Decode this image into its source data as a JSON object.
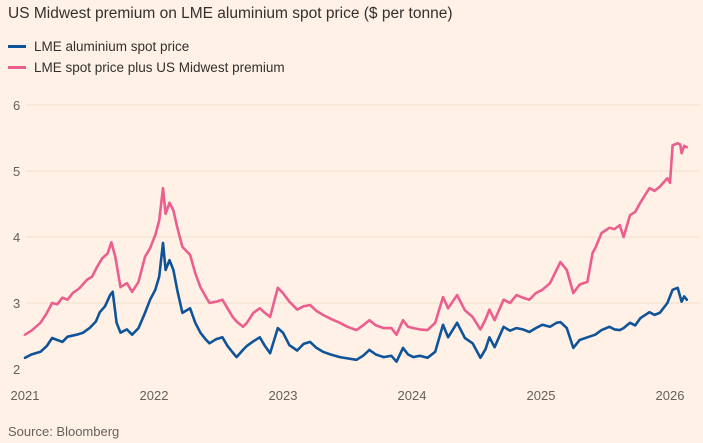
{
  "chart_data": {
    "type": "line",
    "title": "US Midwest premium on LME aluminium spot price ($ per tonne)",
    "xlabel": "",
    "ylabel": "",
    "source": "Source: Bloomberg",
    "grid": true,
    "legend_position": "top-left",
    "xlim": [
      2021,
      2026.15
    ],
    "ylim": [
      2,
      6
    ],
    "x_ticks": [
      2021,
      2022,
      2023,
      2024,
      2025,
      2026
    ],
    "x_tick_labels": [
      "2021",
      "2022",
      "2023",
      "2024",
      "2025",
      "2026"
    ],
    "y_ticks": [
      2,
      3,
      4,
      5,
      6
    ],
    "y_tick_labels": [
      "2",
      "3",
      "4",
      "5",
      "6"
    ],
    "series": [
      {
        "name": "LME aluminium spot price",
        "color": "#0F5499",
        "points": [
          [
            2021.0,
            2.17
          ],
          [
            2021.05,
            2.22
          ],
          [
            2021.12,
            2.26
          ],
          [
            2021.17,
            2.35
          ],
          [
            2021.21,
            2.47
          ],
          [
            2021.25,
            2.44
          ],
          [
            2021.29,
            2.41
          ],
          [
            2021.33,
            2.49
          ],
          [
            2021.4,
            2.52
          ],
          [
            2021.45,
            2.55
          ],
          [
            2021.5,
            2.62
          ],
          [
            2021.55,
            2.72
          ],
          [
            2021.58,
            2.86
          ],
          [
            2021.62,
            2.95
          ],
          [
            2021.66,
            3.12
          ],
          [
            2021.68,
            3.17
          ],
          [
            2021.71,
            2.7
          ],
          [
            2021.74,
            2.55
          ],
          [
            2021.79,
            2.6
          ],
          [
            2021.83,
            2.52
          ],
          [
            2021.88,
            2.62
          ],
          [
            2021.93,
            2.85
          ],
          [
            2021.97,
            3.05
          ],
          [
            2022.01,
            3.2
          ],
          [
            2022.04,
            3.4
          ],
          [
            2022.07,
            3.91
          ],
          [
            2022.09,
            3.5
          ],
          [
            2022.12,
            3.65
          ],
          [
            2022.15,
            3.5
          ],
          [
            2022.18,
            3.2
          ],
          [
            2022.22,
            2.85
          ],
          [
            2022.28,
            2.92
          ],
          [
            2022.32,
            2.7
          ],
          [
            2022.36,
            2.55
          ],
          [
            2022.4,
            2.45
          ],
          [
            2022.43,
            2.39
          ],
          [
            2022.48,
            2.45
          ],
          [
            2022.53,
            2.48
          ],
          [
            2022.57,
            2.35
          ],
          [
            2022.61,
            2.25
          ],
          [
            2022.64,
            2.18
          ],
          [
            2022.69,
            2.29
          ],
          [
            2022.72,
            2.35
          ],
          [
            2022.77,
            2.42
          ],
          [
            2022.82,
            2.48
          ],
          [
            2022.86,
            2.35
          ],
          [
            2022.9,
            2.24
          ],
          [
            2022.96,
            2.62
          ],
          [
            2023.0,
            2.55
          ],
          [
            2023.05,
            2.36
          ],
          [
            2023.11,
            2.28
          ],
          [
            2023.16,
            2.38
          ],
          [
            2023.21,
            2.41
          ],
          [
            2023.26,
            2.32
          ],
          [
            2023.31,
            2.26
          ],
          [
            2023.37,
            2.22
          ],
          [
            2023.44,
            2.18
          ],
          [
            2023.5,
            2.16
          ],
          [
            2023.57,
            2.14
          ],
          [
            2023.62,
            2.2
          ],
          [
            2023.67,
            2.29
          ],
          [
            2023.72,
            2.22
          ],
          [
            2023.78,
            2.18
          ],
          [
            2023.84,
            2.2
          ],
          [
            2023.88,
            2.11
          ],
          [
            2023.93,
            2.32
          ],
          [
            2023.97,
            2.22
          ],
          [
            2024.01,
            2.18
          ],
          [
            2024.06,
            2.2
          ],
          [
            2024.12,
            2.17
          ],
          [
            2024.18,
            2.26
          ],
          [
            2024.24,
            2.67
          ],
          [
            2024.28,
            2.48
          ],
          [
            2024.35,
            2.7
          ],
          [
            2024.41,
            2.47
          ],
          [
            2024.47,
            2.39
          ],
          [
            2024.53,
            2.17
          ],
          [
            2024.57,
            2.3
          ],
          [
            2024.6,
            2.48
          ],
          [
            2024.64,
            2.33
          ],
          [
            2024.71,
            2.64
          ],
          [
            2024.76,
            2.58
          ],
          [
            2024.81,
            2.62
          ],
          [
            2024.86,
            2.6
          ],
          [
            2024.91,
            2.56
          ],
          [
            2024.96,
            2.62
          ],
          [
            2025.01,
            2.67
          ],
          [
            2025.07,
            2.64
          ],
          [
            2025.12,
            2.7
          ],
          [
            2025.15,
            2.71
          ],
          [
            2025.2,
            2.62
          ],
          [
            2025.25,
            2.32
          ],
          [
            2025.3,
            2.44
          ],
          [
            2025.36,
            2.48
          ],
          [
            2025.42,
            2.52
          ],
          [
            2025.47,
            2.59
          ],
          [
            2025.53,
            2.64
          ],
          [
            2025.57,
            2.6
          ],
          [
            2025.61,
            2.59
          ],
          [
            2025.64,
            2.62
          ],
          [
            2025.69,
            2.7
          ],
          [
            2025.73,
            2.66
          ],
          [
            2025.77,
            2.77
          ],
          [
            2025.84,
            2.86
          ],
          [
            2025.88,
            2.82
          ],
          [
            2025.92,
            2.85
          ],
          [
            2025.98,
            3.0
          ],
          [
            2026.02,
            3.2
          ],
          [
            2026.06,
            3.23
          ],
          [
            2026.09,
            3.02
          ],
          [
            2026.11,
            3.1
          ],
          [
            2026.13,
            3.05
          ]
        ]
      },
      {
        "name": "LME spot price plus US Midwest premium",
        "color": "#EB5E8D",
        "points": [
          [
            2021.0,
            2.52
          ],
          [
            2021.05,
            2.58
          ],
          [
            2021.12,
            2.7
          ],
          [
            2021.17,
            2.85
          ],
          [
            2021.21,
            3.0
          ],
          [
            2021.25,
            2.98
          ],
          [
            2021.29,
            3.08
          ],
          [
            2021.33,
            3.05
          ],
          [
            2021.37,
            3.15
          ],
          [
            2021.42,
            3.22
          ],
          [
            2021.48,
            3.35
          ],
          [
            2021.52,
            3.4
          ],
          [
            2021.56,
            3.55
          ],
          [
            2021.6,
            3.68
          ],
          [
            2021.64,
            3.75
          ],
          [
            2021.67,
            3.92
          ],
          [
            2021.7,
            3.7
          ],
          [
            2021.74,
            3.24
          ],
          [
            2021.79,
            3.3
          ],
          [
            2021.83,
            3.17
          ],
          [
            2021.88,
            3.32
          ],
          [
            2021.93,
            3.7
          ],
          [
            2021.97,
            3.83
          ],
          [
            2022.01,
            4.03
          ],
          [
            2022.04,
            4.25
          ],
          [
            2022.07,
            4.74
          ],
          [
            2022.09,
            4.35
          ],
          [
            2022.12,
            4.52
          ],
          [
            2022.15,
            4.4
          ],
          [
            2022.18,
            4.15
          ],
          [
            2022.22,
            3.85
          ],
          [
            2022.28,
            3.73
          ],
          [
            2022.32,
            3.45
          ],
          [
            2022.36,
            3.24
          ],
          [
            2022.4,
            3.1
          ],
          [
            2022.43,
            3.0
          ],
          [
            2022.48,
            3.02
          ],
          [
            2022.53,
            3.05
          ],
          [
            2022.57,
            2.92
          ],
          [
            2022.61,
            2.79
          ],
          [
            2022.64,
            2.72
          ],
          [
            2022.69,
            2.64
          ],
          [
            2022.72,
            2.7
          ],
          [
            2022.77,
            2.85
          ],
          [
            2022.82,
            2.92
          ],
          [
            2022.86,
            2.85
          ],
          [
            2022.9,
            2.79
          ],
          [
            2022.96,
            3.23
          ],
          [
            2023.0,
            3.15
          ],
          [
            2023.05,
            3.02
          ],
          [
            2023.11,
            2.9
          ],
          [
            2023.16,
            2.95
          ],
          [
            2023.21,
            2.97
          ],
          [
            2023.26,
            2.88
          ],
          [
            2023.31,
            2.82
          ],
          [
            2023.37,
            2.76
          ],
          [
            2023.44,
            2.7
          ],
          [
            2023.5,
            2.64
          ],
          [
            2023.57,
            2.59
          ],
          [
            2023.62,
            2.66
          ],
          [
            2023.67,
            2.74
          ],
          [
            2023.72,
            2.66
          ],
          [
            2023.78,
            2.62
          ],
          [
            2023.84,
            2.62
          ],
          [
            2023.88,
            2.52
          ],
          [
            2023.93,
            2.74
          ],
          [
            2023.97,
            2.64
          ],
          [
            2024.01,
            2.62
          ],
          [
            2024.06,
            2.6
          ],
          [
            2024.12,
            2.59
          ],
          [
            2024.18,
            2.7
          ],
          [
            2024.24,
            3.09
          ],
          [
            2024.28,
            2.92
          ],
          [
            2024.35,
            3.12
          ],
          [
            2024.41,
            2.89
          ],
          [
            2024.47,
            2.79
          ],
          [
            2024.53,
            2.6
          ],
          [
            2024.57,
            2.75
          ],
          [
            2024.6,
            2.9
          ],
          [
            2024.64,
            2.74
          ],
          [
            2024.71,
            3.05
          ],
          [
            2024.76,
            3.0
          ],
          [
            2024.81,
            3.12
          ],
          [
            2024.86,
            3.08
          ],
          [
            2024.91,
            3.05
          ],
          [
            2024.96,
            3.15
          ],
          [
            2025.01,
            3.2
          ],
          [
            2025.07,
            3.3
          ],
          [
            2025.12,
            3.5
          ],
          [
            2025.15,
            3.62
          ],
          [
            2025.2,
            3.5
          ],
          [
            2025.25,
            3.15
          ],
          [
            2025.3,
            3.28
          ],
          [
            2025.36,
            3.32
          ],
          [
            2025.4,
            3.76
          ],
          [
            2025.42,
            3.83
          ],
          [
            2025.47,
            4.06
          ],
          [
            2025.53,
            4.14
          ],
          [
            2025.57,
            4.12
          ],
          [
            2025.61,
            4.18
          ],
          [
            2025.64,
            4.0
          ],
          [
            2025.69,
            4.33
          ],
          [
            2025.73,
            4.38
          ],
          [
            2025.77,
            4.52
          ],
          [
            2025.84,
            4.74
          ],
          [
            2025.88,
            4.7
          ],
          [
            2025.92,
            4.76
          ],
          [
            2025.98,
            4.89
          ],
          [
            2026.0,
            4.82
          ],
          [
            2026.02,
            5.39
          ],
          [
            2026.06,
            5.42
          ],
          [
            2026.08,
            5.4
          ],
          [
            2026.09,
            5.27
          ],
          [
            2026.11,
            5.38
          ],
          [
            2026.13,
            5.36
          ]
        ]
      }
    ]
  }
}
